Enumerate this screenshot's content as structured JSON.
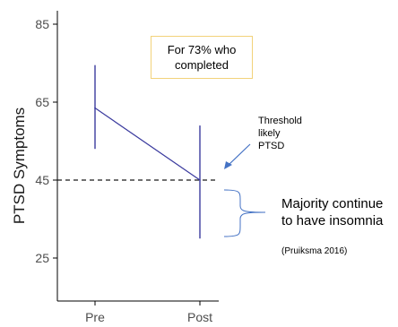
{
  "chart_data": {
    "type": "line",
    "ylabel": "PTSD Symptoms",
    "categories": [
      "Pre",
      "Post"
    ],
    "yticks": [
      25,
      45,
      65,
      85
    ],
    "ylim": [
      15,
      88
    ],
    "series": [
      {
        "values": [
          63.5,
          45
        ],
        "error_low": [
          53,
          30
        ],
        "error_high": [
          74.5,
          59
        ],
        "color": "#3a3a9e"
      }
    ],
    "threshold": {
      "value": 45,
      "style": "dashed",
      "color": "#1a1a1a"
    },
    "grid": false
  },
  "annotations": {
    "note_box": "For 73% who completed",
    "threshold_label": "Threshold\nlikely\nPTSD",
    "majority_label": "Majority continue to have insomnia",
    "citation": "(Pruiksma 2016)"
  },
  "colors": {
    "arrow": "#4472c4",
    "brace": "#4472c4",
    "box_border": "#f2d27a"
  }
}
